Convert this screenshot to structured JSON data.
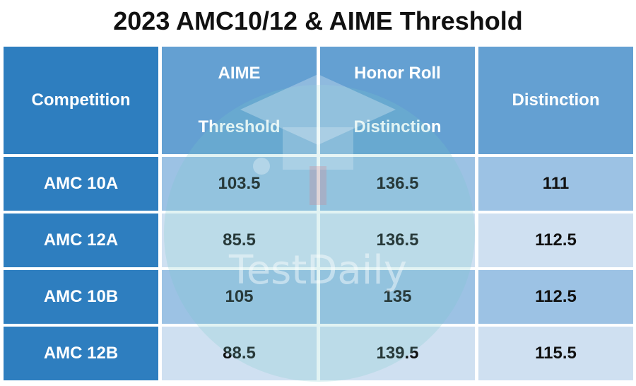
{
  "title": "2023 AMC10/12 & AIME Threshold",
  "watermark": "TestDaily",
  "headers": {
    "competition": "Competition",
    "aime_line1": "AIME",
    "aime_line2": "Threshold",
    "honor_line1": "Honor Roll",
    "honor_line2": "Distinction",
    "distinction": "Distinction"
  },
  "rows": [
    {
      "competition": "AMC 10A",
      "aime": "103.5",
      "honor": "136.5",
      "distinction": "111"
    },
    {
      "competition": "AMC 12A",
      "aime": "85.5",
      "honor": "136.5",
      "distinction": "112.5"
    },
    {
      "competition": "AMC 10B",
      "aime": "105",
      "honor": "135",
      "distinction": "112.5"
    },
    {
      "competition": "AMC 12B",
      "aime": "88.5",
      "honor": "139.5",
      "distinction": "115.5"
    }
  ],
  "colors": {
    "header_dark": "#2e7ebf",
    "header_light": "#64a0d2",
    "cell_mid": "#9cc2e4",
    "cell_light": "#cfe0f1"
  }
}
